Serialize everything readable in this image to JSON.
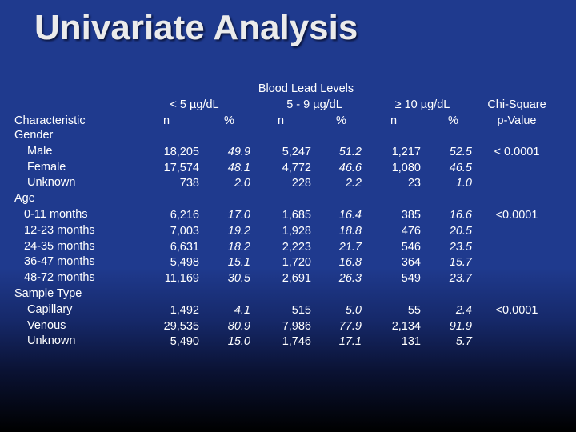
{
  "title": "Univariate Analysis",
  "header": {
    "group_label": "Blood Lead Levels",
    "col1_label": "< 5 µg/dL",
    "col2_label": "5 - 9 µg/dL",
    "col3_label": "≥ 10 µg/dL",
    "chi_label1": "Chi-Square",
    "chi_label2": "p-Value",
    "characteristic": "Characteristic",
    "n": "n",
    "pct": "%"
  },
  "rows": [
    {
      "label": "Gender",
      "level": 0,
      "v": [
        "",
        "",
        "",
        "",
        "",
        ""
      ],
      "p": ""
    },
    {
      "label": "Male",
      "level": 1,
      "v": [
        "18,205",
        "49.9",
        "5,247",
        "51.2",
        "1,217",
        "52.5"
      ],
      "p": "< 0.0001"
    },
    {
      "label": "Female",
      "level": 1,
      "v": [
        "17,574",
        "48.1",
        "4,772",
        "46.6",
        "1,080",
        "46.5"
      ],
      "p": ""
    },
    {
      "label": "Unknown",
      "level": 1,
      "v": [
        "738",
        "2.0",
        "228",
        "2.2",
        "23",
        "1.0"
      ],
      "p": ""
    },
    {
      "label": "Age",
      "level": 0,
      "v": [
        "",
        "",
        "",
        "",
        "",
        ""
      ],
      "p": ""
    },
    {
      "label": "0-11 months",
      "level": 2,
      "v": [
        "6,216",
        "17.0",
        "1,685",
        "16.4",
        "385",
        "16.6"
      ],
      "p": "<0.0001"
    },
    {
      "label": "12-23 months",
      "level": 2,
      "v": [
        "7,003",
        "19.2",
        "1,928",
        "18.8",
        "476",
        "20.5"
      ],
      "p": ""
    },
    {
      "label": "24-35 months",
      "level": 2,
      "v": [
        "6,631",
        "18.2",
        "2,223",
        "21.7",
        "546",
        "23.5"
      ],
      "p": ""
    },
    {
      "label": "36-47 months",
      "level": 2,
      "v": [
        "5,498",
        "15.1",
        "1,720",
        "16.8",
        "364",
        "15.7"
      ],
      "p": ""
    },
    {
      "label": "48-72 months",
      "level": 2,
      "v": [
        "11,169",
        "30.5",
        "2,691",
        "26.3",
        "549",
        "23.7"
      ],
      "p": ""
    },
    {
      "label": "Sample Type",
      "level": 0,
      "v": [
        "",
        "",
        "",
        "",
        "",
        ""
      ],
      "p": ""
    },
    {
      "label": "Capillary",
      "level": 1,
      "v": [
        "1,492",
        "4.1",
        "515",
        "5.0",
        "55",
        "2.4"
      ],
      "p": "<0.0001"
    },
    {
      "label": "Venous",
      "level": 1,
      "v": [
        "29,535",
        "80.9",
        "7,986",
        "77.9",
        "2,134",
        "91.9"
      ],
      "p": ""
    },
    {
      "label": "Unknown",
      "level": 1,
      "v": [
        "5,490",
        "15.0",
        "1,746",
        "17.1",
        "131",
        "5.7"
      ],
      "p": ""
    }
  ]
}
